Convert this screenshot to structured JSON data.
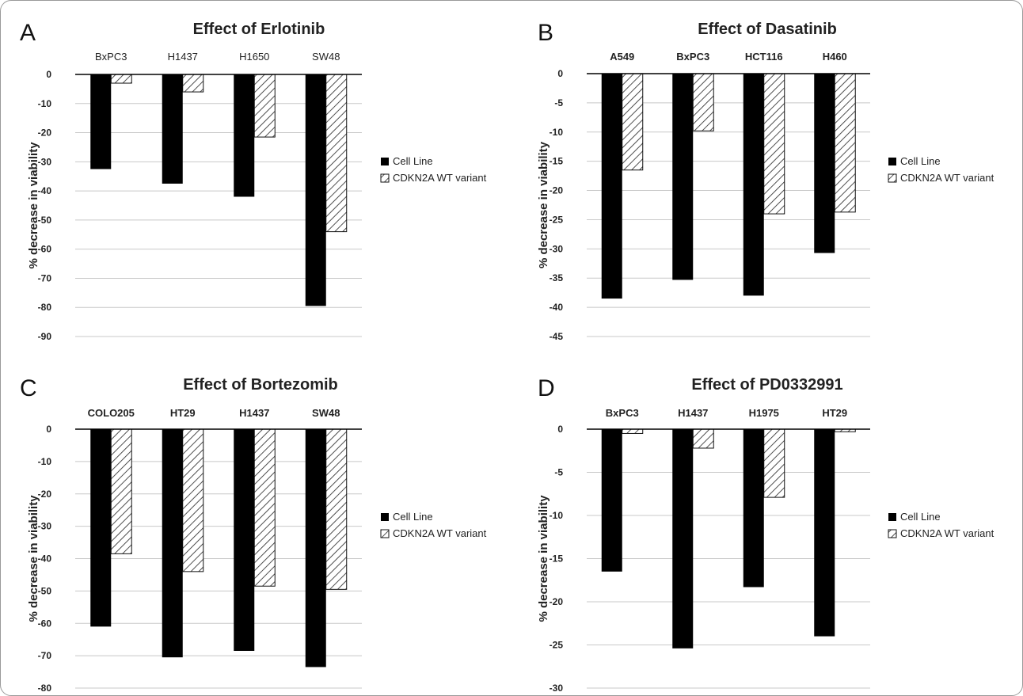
{
  "colors": {
    "cell_line": "#000000",
    "variant_hatch": "#3a3a3a",
    "grid": "#c8c8c8"
  },
  "chart_data": [
    {
      "panel": "A",
      "type": "bar",
      "title": "Effect of Erlotinib",
      "ylabel": "% decrease in viability",
      "ylim": [
        -90,
        0
      ],
      "yticks": [
        0,
        -10,
        -20,
        -30,
        -40,
        -50,
        -60,
        -70,
        -80,
        -90
      ],
      "categories": [
        "BxPC3",
        "H1437",
        "H1650",
        "SW48"
      ],
      "series": [
        {
          "name": "Cell Line",
          "values": [
            -32.5,
            -37.5,
            -42,
            -79.5
          ]
        },
        {
          "name": "CDKN2A WT variant",
          "values": [
            -3,
            -6,
            -21.5,
            -54
          ]
        }
      ],
      "legend_position": "right",
      "grid": true,
      "category_labels_position": "top"
    },
    {
      "panel": "B",
      "type": "bar",
      "title": "Effect of Dasatinib",
      "ylabel": "% decrease in viability",
      "ylim": [
        -45,
        0
      ],
      "yticks": [
        0,
        -5,
        -10,
        -15,
        -20,
        -25,
        -30,
        -35,
        -40,
        -45
      ],
      "categories": [
        "A549",
        "BxPC3",
        "HCT116",
        "H460"
      ],
      "series": [
        {
          "name": "Cell Line",
          "values": [
            -38.5,
            -35.3,
            -38,
            -30.7
          ]
        },
        {
          "name": "CDKN2A WT variant",
          "values": [
            -16.5,
            -9.8,
            -24,
            -23.7
          ]
        }
      ],
      "legend_position": "right",
      "grid": true,
      "category_labels_position": "top"
    },
    {
      "panel": "C",
      "type": "bar",
      "title": "Effect of Bortezomib",
      "ylabel": "% decrease in viability",
      "ylim": [
        -80,
        0
      ],
      "yticks": [
        0,
        -10,
        -20,
        -30,
        -40,
        -50,
        -60,
        -70,
        -80
      ],
      "categories": [
        "COLO205",
        "HT29",
        "H1437",
        "SW48"
      ],
      "series": [
        {
          "name": "Cell Line",
          "values": [
            -61,
            -70.5,
            -68.5,
            -73.5
          ]
        },
        {
          "name": "CDKN2A WT variant",
          "values": [
            -38.5,
            -44,
            -48.5,
            -49.5
          ]
        }
      ],
      "legend_position": "right",
      "grid": true,
      "category_labels_position": "top"
    },
    {
      "panel": "D",
      "type": "bar",
      "title": "Effect of PD0332991",
      "ylabel": "% decrease in viability",
      "ylim": [
        -30,
        0
      ],
      "yticks": [
        0,
        -5,
        -10,
        -15,
        -20,
        -25,
        -30
      ],
      "categories": [
        "BxPC3",
        "H1437",
        "H1975",
        "HT29"
      ],
      "series": [
        {
          "name": "Cell Line",
          "values": [
            -16.5,
            -25.4,
            -18.3,
            -24
          ]
        },
        {
          "name": "CDKN2A WT variant",
          "values": [
            -0.5,
            -2.2,
            -7.9,
            -0.3
          ]
        }
      ],
      "legend_position": "right",
      "grid": true,
      "category_labels_position": "top"
    }
  ]
}
